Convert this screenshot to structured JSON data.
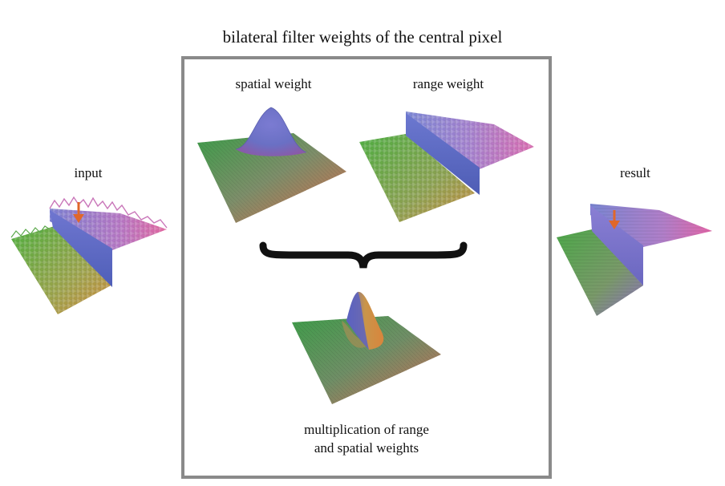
{
  "title": "bilateral filter weights of the central pixel",
  "labels": {
    "input": "input",
    "spatial_weight": "spatial weight",
    "range_weight": "range weight",
    "result": "result",
    "caption_line1": "multiplication of range",
    "caption_line2": "and spatial weights"
  },
  "colors": {
    "frame": "#8a8a8a",
    "arrow": "#e0672a",
    "surface_green": "#3fa34a",
    "surface_blue": "#6a74c9",
    "surface_pink": "#d35aa8",
    "surface_orange": "#d98a3b"
  },
  "icons": [
    "down-arrow-icon",
    "curly-brace-icon"
  ]
}
